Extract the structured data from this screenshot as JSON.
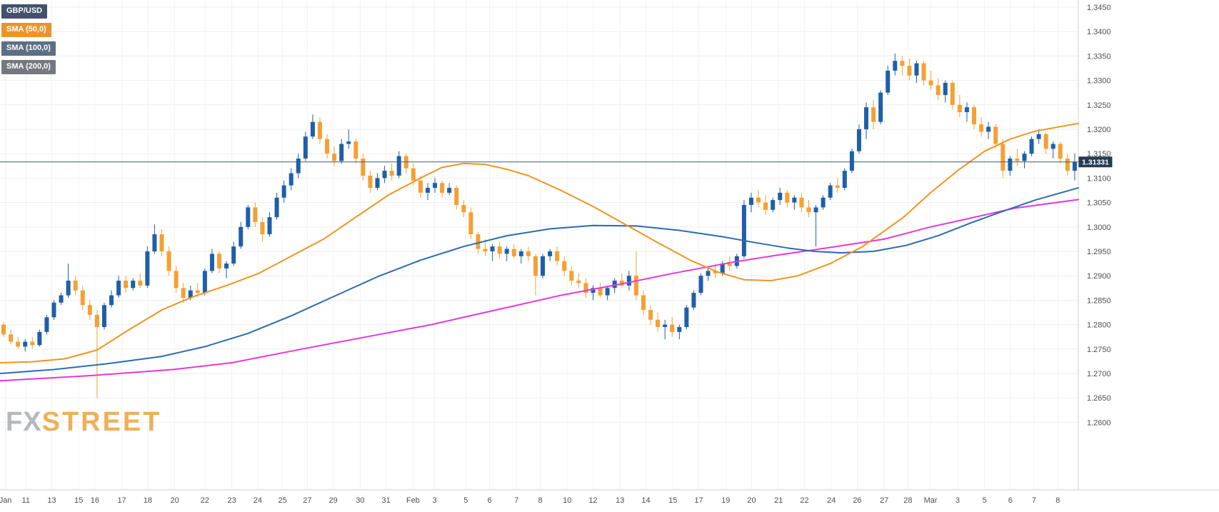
{
  "watermark": {
    "fx": "FX",
    "street": "STREET"
  },
  "chart_data": {
    "type": "candlestick",
    "symbol": "GBP/USD",
    "timeframe_visible_range": "Jan 11 - Mar 8",
    "legend": [
      {
        "label": "GBP/USD",
        "color": "#42526b"
      },
      {
        "label": "SMA (50,0)",
        "color": "#e8952f"
      },
      {
        "label": "SMA (100,0)",
        "color": "#5c6f87"
      },
      {
        "label": "SMA (200,0)",
        "color": "#75797f"
      }
    ],
    "current_price": {
      "label": "1.31331",
      "value": 1.31331
    },
    "colors": {
      "up": "#1e5fa9",
      "down": "#f4a032",
      "sma50": "#f0941f",
      "sma100": "#2a6bb5",
      "sma200": "#e637d8",
      "price_line": "#3a5a78",
      "price_badge": "#253c52",
      "grid": "#ededed",
      "vgrid": "#f2f2f2",
      "axis_text": "#4f4f4f",
      "axis_border": "#cfcfcf"
    },
    "y_axis": {
      "min": 1.26,
      "max": 1.345,
      "step": 0.005,
      "labels": [
        "1.3450",
        "1.3400",
        "1.3350",
        "1.3300",
        "1.3250",
        "1.3200",
        "1.3150",
        "1.3100",
        "1.3050",
        "1.3000",
        "1.2950",
        "1.2900",
        "1.2850",
        "1.2800",
        "1.2750",
        "1.2700",
        "1.2650",
        "1.2600"
      ]
    },
    "x_ticks": [
      {
        "f": 0.005,
        "label": "Jan"
      },
      {
        "f": 0.024,
        "label": "11"
      },
      {
        "f": 0.048,
        "label": "13"
      },
      {
        "f": 0.073,
        "label": "15"
      },
      {
        "f": 0.088,
        "label": "16"
      },
      {
        "f": 0.113,
        "label": "17"
      },
      {
        "f": 0.137,
        "label": "18"
      },
      {
        "f": 0.162,
        "label": "20"
      },
      {
        "f": 0.19,
        "label": "22"
      },
      {
        "f": 0.215,
        "label": "23"
      },
      {
        "f": 0.239,
        "label": "24"
      },
      {
        "f": 0.262,
        "label": "25"
      },
      {
        "f": 0.285,
        "label": "27"
      },
      {
        "f": 0.309,
        "label": "29"
      },
      {
        "f": 0.334,
        "label": "30"
      },
      {
        "f": 0.358,
        "label": "31"
      },
      {
        "f": 0.383,
        "label": "Feb"
      },
      {
        "f": 0.403,
        "label": "3"
      },
      {
        "f": 0.432,
        "label": "5"
      },
      {
        "f": 0.454,
        "label": "6"
      },
      {
        "f": 0.479,
        "label": "7"
      },
      {
        "f": 0.501,
        "label": "8"
      },
      {
        "f": 0.526,
        "label": "10"
      },
      {
        "f": 0.55,
        "label": "12"
      },
      {
        "f": 0.575,
        "label": "13"
      },
      {
        "f": 0.599,
        "label": "14"
      },
      {
        "f": 0.624,
        "label": "15"
      },
      {
        "f": 0.648,
        "label": "17"
      },
      {
        "f": 0.673,
        "label": "19"
      },
      {
        "f": 0.697,
        "label": "20"
      },
      {
        "f": 0.722,
        "label": "21"
      },
      {
        "f": 0.746,
        "label": "22"
      },
      {
        "f": 0.771,
        "label": "24"
      },
      {
        "f": 0.795,
        "label": "26"
      },
      {
        "f": 0.82,
        "label": "27"
      },
      {
        "f": 0.842,
        "label": "28"
      },
      {
        "f": 0.863,
        "label": "Mar"
      },
      {
        "f": 0.888,
        "label": "3"
      },
      {
        "f": 0.913,
        "label": "5"
      },
      {
        "f": 0.937,
        "label": "6"
      },
      {
        "f": 0.959,
        "label": "7"
      },
      {
        "f": 0.981,
        "label": "8"
      }
    ],
    "candles": [
      [
        1.28,
        1.2805,
        1.2775,
        1.278
      ],
      [
        1.278,
        1.279,
        1.276,
        1.2765
      ],
      [
        1.2765,
        1.2775,
        1.275,
        1.2755
      ],
      [
        1.2755,
        1.277,
        1.2745,
        1.2765
      ],
      [
        1.2765,
        1.2775,
        1.275,
        1.2758
      ],
      [
        1.2758,
        1.279,
        1.2755,
        1.2785
      ],
      [
        1.2785,
        1.282,
        1.278,
        1.2815
      ],
      [
        1.2815,
        1.285,
        1.281,
        1.2845
      ],
      [
        1.2845,
        1.2865,
        1.284,
        1.286
      ],
      [
        1.286,
        1.2925,
        1.2855,
        1.289
      ],
      [
        1.289,
        1.29,
        1.286,
        1.287
      ],
      [
        1.287,
        1.288,
        1.283,
        1.284
      ],
      [
        1.284,
        1.285,
        1.281,
        1.282
      ],
      [
        1.282,
        1.283,
        1.265,
        1.2795
      ],
      [
        1.2795,
        1.2845,
        1.279,
        1.284
      ],
      [
        1.284,
        1.287,
        1.2835,
        1.286
      ],
      [
        1.286,
        1.29,
        1.2855,
        1.289
      ],
      [
        1.289,
        1.29,
        1.2865,
        1.2875
      ],
      [
        1.2875,
        1.2895,
        1.287,
        1.289
      ],
      [
        1.289,
        1.2905,
        1.2875,
        1.288
      ],
      [
        1.288,
        1.296,
        1.2875,
        1.295
      ],
      [
        1.295,
        1.3005,
        1.2945,
        1.2985
      ],
      [
        1.2985,
        1.2995,
        1.294,
        1.295
      ],
      [
        1.295,
        1.296,
        1.29,
        1.291
      ],
      [
        1.291,
        1.292,
        1.2865,
        1.2875
      ],
      [
        1.2875,
        1.2885,
        1.2845,
        1.2855
      ],
      [
        1.2855,
        1.288,
        1.285,
        1.287
      ],
      [
        1.287,
        1.2885,
        1.2855,
        1.2865
      ],
      [
        1.2865,
        1.2915,
        1.286,
        1.291
      ],
      [
        1.291,
        1.2955,
        1.2905,
        1.2945
      ],
      [
        1.2945,
        1.295,
        1.2905,
        1.2915
      ],
      [
        1.2915,
        1.293,
        1.2895,
        1.2925
      ],
      [
        1.2925,
        1.297,
        1.292,
        1.296
      ],
      [
        1.296,
        1.301,
        1.2955,
        1.3
      ],
      [
        1.3,
        1.3045,
        1.2995,
        1.304
      ],
      [
        1.304,
        1.305,
        1.3,
        1.301
      ],
      [
        1.301,
        1.302,
        1.297,
        1.2985
      ],
      [
        1.2985,
        1.303,
        1.298,
        1.302
      ],
      [
        1.302,
        1.307,
        1.3015,
        1.306
      ],
      [
        1.306,
        1.3095,
        1.305,
        1.3085
      ],
      [
        1.3085,
        1.312,
        1.3075,
        1.311
      ],
      [
        1.311,
        1.315,
        1.31,
        1.314
      ],
      [
        1.314,
        1.3195,
        1.3135,
        1.3185
      ],
      [
        1.3185,
        1.323,
        1.318,
        1.3215
      ],
      [
        1.3215,
        1.3225,
        1.317,
        1.318
      ],
      [
        1.318,
        1.319,
        1.314,
        1.315
      ],
      [
        1.315,
        1.3165,
        1.3125,
        1.3135
      ],
      [
        1.3135,
        1.318,
        1.313,
        1.317
      ],
      [
        1.317,
        1.32,
        1.316,
        1.3175
      ],
      [
        1.3175,
        1.318,
        1.313,
        1.314
      ],
      [
        1.314,
        1.315,
        1.3095,
        1.3105
      ],
      [
        1.3105,
        1.3115,
        1.307,
        1.308
      ],
      [
        1.308,
        1.311,
        1.3075,
        1.31
      ],
      [
        1.31,
        1.3125,
        1.309,
        1.3115
      ],
      [
        1.3115,
        1.313,
        1.3095,
        1.3105
      ],
      [
        1.3105,
        1.3155,
        1.31,
        1.3145
      ],
      [
        1.3145,
        1.315,
        1.311,
        1.312
      ],
      [
        1.312,
        1.313,
        1.3085,
        1.3095
      ],
      [
        1.3095,
        1.3105,
        1.306,
        1.307
      ],
      [
        1.307,
        1.309,
        1.3055,
        1.308
      ],
      [
        1.308,
        1.31,
        1.307,
        1.309
      ],
      [
        1.309,
        1.3095,
        1.306,
        1.307
      ],
      [
        1.307,
        1.309,
        1.3065,
        1.308
      ],
      [
        1.308,
        1.3085,
        1.3035,
        1.3045
      ],
      [
        1.3045,
        1.3055,
        1.302,
        1.303
      ],
      [
        1.303,
        1.304,
        1.2975,
        1.2985
      ],
      [
        1.2985,
        1.299,
        1.2945,
        1.2955
      ],
      [
        1.2955,
        1.2975,
        1.294,
        1.295
      ],
      [
        1.295,
        1.2965,
        1.293,
        1.296
      ],
      [
        1.296,
        1.297,
        1.2935,
        1.2945
      ],
      [
        1.2945,
        1.296,
        1.293,
        1.2955
      ],
      [
        1.2955,
        1.2965,
        1.2935,
        1.294
      ],
      [
        1.294,
        1.2955,
        1.2925,
        1.295
      ],
      [
        1.295,
        1.296,
        1.293,
        1.294
      ],
      [
        1.294,
        1.2945,
        1.286,
        1.29
      ],
      [
        1.29,
        1.2945,
        1.2895,
        1.294
      ],
      [
        1.294,
        1.2955,
        1.293,
        1.295
      ],
      [
        1.295,
        1.296,
        1.292,
        1.293
      ],
      [
        1.293,
        1.294,
        1.29,
        1.291
      ],
      [
        1.291,
        1.292,
        1.288,
        1.289
      ],
      [
        1.289,
        1.2905,
        1.2875,
        1.2885
      ],
      [
        1.2885,
        1.2895,
        1.2855,
        1.2865
      ],
      [
        1.2865,
        1.288,
        1.285,
        1.2875
      ],
      [
        1.2875,
        1.2885,
        1.2855,
        1.286
      ],
      [
        1.286,
        1.288,
        1.285,
        1.2875
      ],
      [
        1.2875,
        1.2895,
        1.2865,
        1.289
      ],
      [
        1.289,
        1.2905,
        1.2875,
        1.288
      ],
      [
        1.288,
        1.291,
        1.287,
        1.29
      ],
      [
        1.29,
        1.295,
        1.285,
        1.286
      ],
      [
        1.286,
        1.287,
        1.282,
        1.283
      ],
      [
        1.283,
        1.284,
        1.28,
        1.281
      ],
      [
        1.281,
        1.2825,
        1.2785,
        1.2795
      ],
      [
        1.2795,
        1.281,
        1.277,
        1.28
      ],
      [
        1.28,
        1.2815,
        1.2775,
        1.2785
      ],
      [
        1.2785,
        1.28,
        1.277,
        1.2795
      ],
      [
        1.2795,
        1.284,
        1.279,
        1.2835
      ],
      [
        1.2835,
        1.287,
        1.283,
        1.2865
      ],
      [
        1.2865,
        1.2905,
        1.286,
        1.29
      ],
      [
        1.29,
        1.292,
        1.289,
        1.291
      ],
      [
        1.291,
        1.2925,
        1.2895,
        1.2905
      ],
      [
        1.2905,
        1.293,
        1.29,
        1.2925
      ],
      [
        1.2925,
        1.294,
        1.291,
        1.292
      ],
      [
        1.292,
        1.2945,
        1.2915,
        1.294
      ],
      [
        1.294,
        1.3055,
        1.2935,
        1.3045
      ],
      [
        1.3045,
        1.307,
        1.303,
        1.306
      ],
      [
        1.306,
        1.3075,
        1.304,
        1.305
      ],
      [
        1.305,
        1.3065,
        1.3025,
        1.3035
      ],
      [
        1.3035,
        1.306,
        1.303,
        1.3055
      ],
      [
        1.3055,
        1.308,
        1.3045,
        1.307
      ],
      [
        1.307,
        1.3075,
        1.304,
        1.305
      ],
      [
        1.305,
        1.3065,
        1.3035,
        1.306
      ],
      [
        1.306,
        1.307,
        1.303,
        1.304
      ],
      [
        1.304,
        1.3055,
        1.302,
        1.303
      ],
      [
        1.303,
        1.3045,
        1.296,
        1.304
      ],
      [
        1.304,
        1.3065,
        1.3035,
        1.306
      ],
      [
        1.306,
        1.309,
        1.3055,
        1.3085
      ],
      [
        1.3085,
        1.31,
        1.307,
        1.308
      ],
      [
        1.308,
        1.312,
        1.3075,
        1.3115
      ],
      [
        1.3115,
        1.316,
        1.311,
        1.3155
      ],
      [
        1.3155,
        1.321,
        1.315,
        1.32
      ],
      [
        1.32,
        1.3255,
        1.318,
        1.3245
      ],
      [
        1.3245,
        1.326,
        1.32,
        1.3215
      ],
      [
        1.3215,
        1.328,
        1.321,
        1.3275
      ],
      [
        1.3275,
        1.333,
        1.327,
        1.332
      ],
      [
        1.332,
        1.3355,
        1.331,
        1.334
      ],
      [
        1.334,
        1.335,
        1.331,
        1.333
      ],
      [
        1.333,
        1.3345,
        1.33,
        1.331
      ],
      [
        1.331,
        1.334,
        1.3295,
        1.3335
      ],
      [
        1.3335,
        1.334,
        1.329,
        1.33
      ],
      [
        1.33,
        1.332,
        1.328,
        1.329
      ],
      [
        1.329,
        1.3305,
        1.326,
        1.327
      ],
      [
        1.327,
        1.33,
        1.3255,
        1.3295
      ],
      [
        1.3295,
        1.33,
        1.324,
        1.325
      ],
      [
        1.325,
        1.327,
        1.3225,
        1.3235
      ],
      [
        1.3235,
        1.3255,
        1.3215,
        1.3245
      ],
      [
        1.3245,
        1.325,
        1.32,
        1.321
      ],
      [
        1.321,
        1.3225,
        1.3185,
        1.3195
      ],
      [
        1.3195,
        1.3215,
        1.318,
        1.3205
      ],
      [
        1.3205,
        1.321,
        1.316,
        1.317
      ],
      [
        1.317,
        1.318,
        1.31,
        1.3115
      ],
      [
        1.3115,
        1.3145,
        1.3105,
        1.314
      ],
      [
        1.314,
        1.316,
        1.3125,
        1.3135
      ],
      [
        1.3135,
        1.3155,
        1.312,
        1.315
      ],
      [
        1.315,
        1.3185,
        1.3145,
        1.318
      ],
      [
        1.318,
        1.32,
        1.317,
        1.319
      ],
      [
        1.319,
        1.3195,
        1.315,
        1.316
      ],
      [
        1.316,
        1.3175,
        1.314,
        1.317
      ],
      [
        1.317,
        1.3175,
        1.313,
        1.314
      ],
      [
        1.314,
        1.315,
        1.3105,
        1.3115
      ],
      [
        1.3115,
        1.315,
        1.3095,
        1.3133
      ]
    ],
    "sma50": [
      [
        0,
        1.2722
      ],
      [
        0.03,
        1.2724
      ],
      [
        0.06,
        1.273
      ],
      [
        0.09,
        1.2748
      ],
      [
        0.12,
        1.279
      ],
      [
        0.15,
        1.283
      ],
      [
        0.18,
        1.2858
      ],
      [
        0.21,
        1.288
      ],
      [
        0.24,
        1.2905
      ],
      [
        0.27,
        1.294
      ],
      [
        0.3,
        1.2975
      ],
      [
        0.33,
        1.302
      ],
      [
        0.36,
        1.3065
      ],
      [
        0.39,
        1.31
      ],
      [
        0.41,
        1.3122
      ],
      [
        0.43,
        1.313
      ],
      [
        0.45,
        1.3128
      ],
      [
        0.47,
        1.3118
      ],
      [
        0.49,
        1.3105
      ],
      [
        0.52,
        1.3075
      ],
      [
        0.55,
        1.3042
      ],
      [
        0.58,
        1.3005
      ],
      [
        0.61,
        1.2968
      ],
      [
        0.64,
        1.2932
      ],
      [
        0.665,
        1.2908
      ],
      [
        0.69,
        1.2892
      ],
      [
        0.715,
        1.289
      ],
      [
        0.74,
        1.29
      ],
      [
        0.77,
        1.2925
      ],
      [
        0.8,
        1.296
      ],
      [
        0.838,
        1.302
      ],
      [
        0.863,
        1.307
      ],
      [
        0.888,
        1.3115
      ],
      [
        0.913,
        1.3155
      ],
      [
        0.937,
        1.318
      ],
      [
        0.96,
        1.3196
      ],
      [
        1.0,
        1.3212
      ]
    ],
    "sma100": [
      [
        0,
        1.27
      ],
      [
        0.05,
        1.2708
      ],
      [
        0.1,
        1.272
      ],
      [
        0.15,
        1.2735
      ],
      [
        0.19,
        1.2755
      ],
      [
        0.23,
        1.2782
      ],
      [
        0.27,
        1.2818
      ],
      [
        0.31,
        1.2858
      ],
      [
        0.35,
        1.2898
      ],
      [
        0.39,
        1.2932
      ],
      [
        0.43,
        1.296
      ],
      [
        0.47,
        1.2982
      ],
      [
        0.51,
        1.2996
      ],
      [
        0.55,
        1.3003
      ],
      [
        0.59,
        1.3002
      ],
      [
        0.63,
        1.2993
      ],
      [
        0.67,
        1.298
      ],
      [
        0.7,
        1.2968
      ],
      [
        0.73,
        1.2957
      ],
      [
        0.755,
        1.295
      ],
      [
        0.78,
        1.2947
      ],
      [
        0.81,
        1.295
      ],
      [
        0.84,
        1.2962
      ],
      [
        0.87,
        1.2982
      ],
      [
        0.9,
        1.3008
      ],
      [
        0.93,
        1.3032
      ],
      [
        0.96,
        1.3055
      ],
      [
        1.0,
        1.308
      ]
    ],
    "sma200": [
      [
        0,
        1.2685
      ],
      [
        0.08,
        1.2695
      ],
      [
        0.16,
        1.2708
      ],
      [
        0.215,
        1.2722
      ],
      [
        0.28,
        1.275
      ],
      [
        0.34,
        1.2775
      ],
      [
        0.4,
        1.28
      ],
      [
        0.46,
        1.283
      ],
      [
        0.52,
        1.286
      ],
      [
        0.58,
        1.2885
      ],
      [
        0.624,
        1.2905
      ],
      [
        0.68,
        1.2928
      ],
      [
        0.72,
        1.2942
      ],
      [
        0.77,
        1.2958
      ],
      [
        0.82,
        1.2975
      ],
      [
        0.863,
        1.3
      ],
      [
        0.9,
        1.3018
      ],
      [
        0.94,
        1.3038
      ],
      [
        1.0,
        1.3056
      ]
    ]
  }
}
